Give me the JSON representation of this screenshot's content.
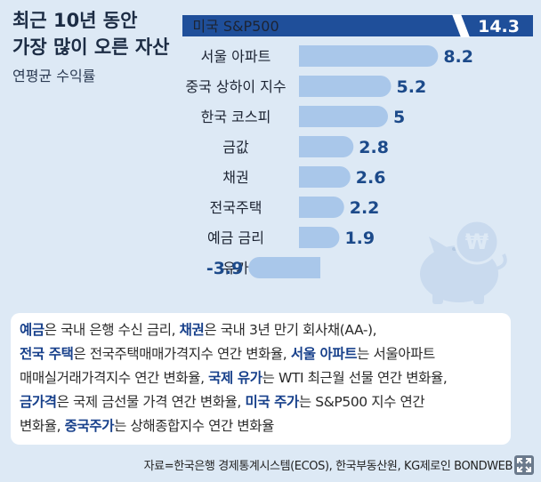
{
  "title_line1": "최근 10년 동안",
  "title_line2": "가장 많이 오른 자산",
  "subtitle": "연평균 수익률",
  "chart_data": {
    "type": "bar",
    "orientation": "horizontal",
    "categories": [
      "미국 S&P500",
      "서울 아파트",
      "중국 상하이 지수",
      "한국 코스피",
      "금값",
      "채권",
      "전국주택",
      "예금 금리",
      "유가"
    ],
    "values": [
      14.3,
      8.2,
      5.2,
      5,
      2.8,
      2.6,
      2.2,
      1.9,
      -3.9
    ],
    "value_labels": [
      "14.3",
      "8.2",
      "5.2",
      "5",
      "2.8",
      "2.6",
      "2.2",
      "1.9",
      "-3.9"
    ],
    "highlight_index": 0,
    "axis_break_on_first_bar": true,
    "colors": {
      "highlight": "#1f4f9a",
      "bar": "#a9c7ea",
      "label": "#1c4a8a",
      "highlight_label": "#ffffff"
    }
  },
  "notes": [
    [
      {
        "t": "예금",
        "hl": true
      },
      {
        "t": "은 국내 은행 수신 금리, "
      },
      {
        "t": "채권",
        "hl": true
      },
      {
        "t": "은 국내 3년 만기 회사채(AA-),"
      }
    ],
    [
      {
        "t": "전국 주택",
        "hl": true
      },
      {
        "t": "은 전국주택매매가격지수 연간 변화율, "
      },
      {
        "t": "서울 아파트",
        "hl": true
      },
      {
        "t": "는 서울아파트"
      }
    ],
    [
      {
        "t": "매매실거래가격지수 연간 변화율, "
      },
      {
        "t": "국제 유가",
        "hl": true
      },
      {
        "t": "는 WTI 최근월 선물 연간 변화율,"
      }
    ],
    [
      {
        "t": "금가격",
        "hl": true
      },
      {
        "t": "은 국제 금선물 가격 연간 변화율, "
      },
      {
        "t": "미국 주가",
        "hl": true
      },
      {
        "t": "는 S&P500 지수 연간"
      }
    ],
    [
      {
        "t": "변화율, "
      },
      {
        "t": "중국주가",
        "hl": true
      },
      {
        "t": "는 상해종합지수 연간 변화율"
      }
    ]
  ],
  "source": "자료=한국은행 경제통계시스템(ECOS), 한국부동산원, KG제로인 BONDWEB",
  "icons": {
    "piggy": "piggy-bank-won-icon",
    "expand": "expand-icon"
  }
}
